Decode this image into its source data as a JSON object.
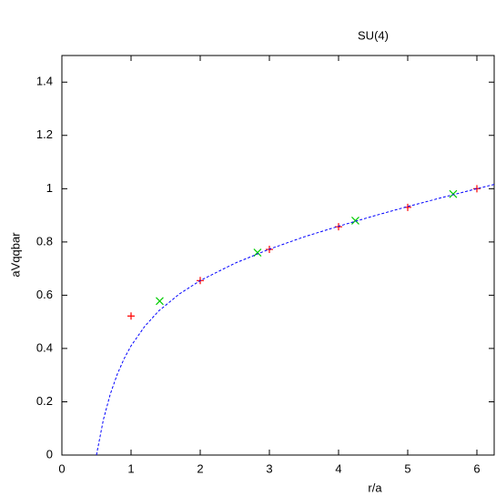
{
  "chart_data": {
    "type": "scatter",
    "title": "SU(4)",
    "xlabel": "r/a",
    "ylabel": "aVqqbar",
    "xlim": [
      0,
      6.25
    ],
    "ylim": [
      0,
      1.5
    ],
    "xticks": [
      0,
      1,
      2,
      3,
      4,
      5,
      6
    ],
    "yticks": [
      0,
      0.2,
      0.4,
      0.6,
      0.8,
      1,
      1.2,
      1.4
    ],
    "series": [
      {
        "marker": "plus",
        "color": "#ff0000",
        "x": [
          1,
          2,
          3,
          4,
          5,
          6
        ],
        "values": [
          0.522,
          0.655,
          0.772,
          0.857,
          0.93,
          1.0
        ]
      },
      {
        "marker": "cross",
        "color": "#00cc00",
        "x": [
          1.414,
          2.828,
          4.243,
          5.657
        ],
        "values": [
          0.578,
          0.76,
          0.88,
          0.98
        ]
      },
      {
        "marker": "dashed-line",
        "color": "#0000ff",
        "x": [
          0.5,
          0.6,
          0.7,
          0.8,
          0.9,
          1.0,
          1.2,
          1.4,
          1.7,
          2.0,
          2.5,
          3.0,
          3.5,
          4.0,
          4.5,
          5.0,
          5.5,
          6.0,
          6.25
        ],
        "values": [
          0.0,
          0.133,
          0.229,
          0.303,
          0.362,
          0.41,
          0.484,
          0.541,
          0.605,
          0.655,
          0.72,
          0.773,
          0.819,
          0.859,
          0.897,
          0.933,
          0.967,
          1.0,
          1.016
        ]
      }
    ]
  }
}
